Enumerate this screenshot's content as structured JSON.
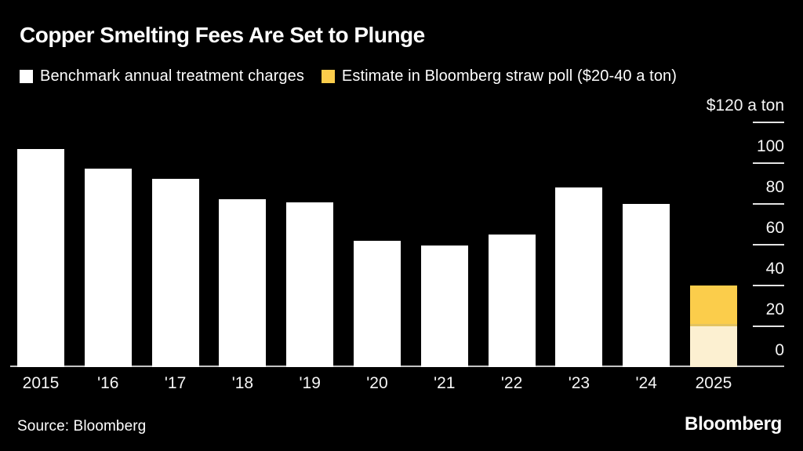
{
  "title": "Copper Smelting Fees Are Set to Plunge",
  "legend": {
    "items": [
      {
        "label": "Benchmark annual treatment charges",
        "swatch_color": "#ffffff"
      },
      {
        "label": "Estimate in Bloomberg straw poll ($20-40 a ton)",
        "swatch_color": "#fbcd4b"
      }
    ]
  },
  "chart_data": {
    "type": "bar",
    "title": "Copper Smelting Fees Are Set to Plunge",
    "categories": [
      "2015",
      "'16",
      "'17",
      "'18",
      "'19",
      "'20",
      "'21",
      "'22",
      "'23",
      "'24",
      "2025"
    ],
    "series": [
      {
        "name": "Benchmark annual treatment charges",
        "type": "bar",
        "color": "#ffffff",
        "values": [
          107,
          97.35,
          92.5,
          82.25,
          80.8,
          62,
          59.5,
          65,
          88,
          80,
          null
        ]
      },
      {
        "name": "Estimate in Bloomberg straw poll ($20-40 a ton)",
        "type": "range-bar",
        "category": "2025",
        "low": 20,
        "high": 40,
        "high_color": "#fbcd4b",
        "low_color": "#fcf0d1"
      }
    ],
    "ylabel": "$120 a ton",
    "ylim": [
      0,
      120
    ],
    "yticks": [
      0,
      20,
      40,
      60,
      80,
      100,
      120
    ],
    "ytick_labels": [
      "0",
      "20",
      "40",
      "60",
      "80",
      "100",
      "$120 a ton"
    ],
    "legend_position": "top",
    "grid": false,
    "background": "#000000",
    "axis_line_color": "#c4c4c4",
    "tick_color": "#e3e3e3"
  },
  "footer": {
    "source": "Source: Bloomberg",
    "brand": "Bloomberg"
  }
}
